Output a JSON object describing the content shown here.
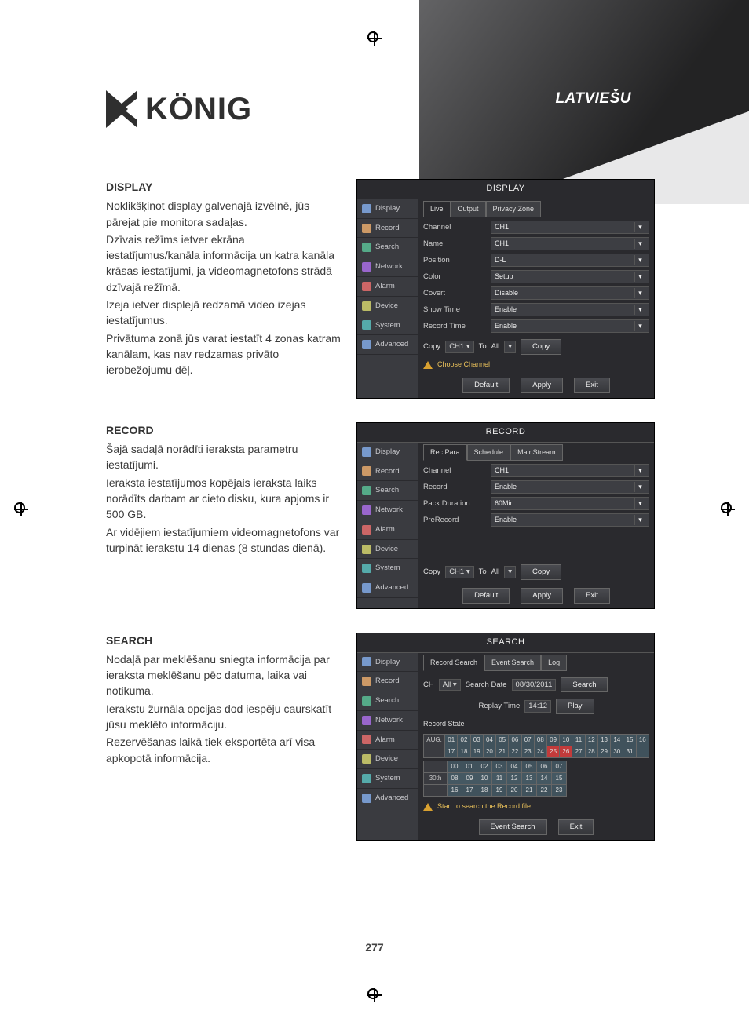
{
  "meta": {
    "page_number": "277",
    "background_color": "#ffffff"
  },
  "header": {
    "language": "LATVIEŠU",
    "logo_text": "KÖNIG"
  },
  "sections": {
    "display": {
      "heading": "DISPLAY",
      "p1": "Noklikšķinot display galvenajā izvēlnē, jūs pārejat pie monitora sadaļas.",
      "p2": "Dzīvais režīms ietver ekrāna iestatījumus/kanāla informācija un katra kanāla krāsas iestatījumi, ja videomagnetofons strādā dzīvajā režīmā.",
      "p3": "Izeja ietver displejā redzamā video izejas iestatījumus.",
      "p4": "Privātuma zonā jūs varat iestatīt 4 zonas katram kanālam, kas nav redzamas privāto ierobežojumu dēļ."
    },
    "record": {
      "heading": "RECORD",
      "p1": "Šajā sadaļā norādīti ieraksta parametru iestatījumi.",
      "p2": "Ieraksta iestatījumos kopējais ieraksta laiks norādīts darbam ar cieto disku, kura apjoms ir 500 GB.",
      "p3": "Ar vidējiem iestatījumiem videomagnetofons var turpināt ierakstu 14 dienas (8 stundas dienā)."
    },
    "search": {
      "heading": "SEARCH",
      "p1": "Nodaļā par meklēšanu sniegta informācija par ieraksta meklēšanu pēc datuma, laika vai notikuma.",
      "p2": "Ierakstu žurnāla opcijas dod iespēju caurskatīt jūsu meklēto informāciju.",
      "p3": "Rezervēšanas laikā tiek eksportēta arī visa apkopotā informācija."
    }
  },
  "dvr": {
    "colors": {
      "panel_bg": "#2a2a2e",
      "sidebar_bg": "#3a3b40",
      "field_bg": "#3d3e43",
      "border": "#555555",
      "text": "#dddddd"
    },
    "sidebar": [
      {
        "label": "Display"
      },
      {
        "label": "Record"
      },
      {
        "label": "Search"
      },
      {
        "label": "Network"
      },
      {
        "label": "Alarm"
      },
      {
        "label": "Device"
      },
      {
        "label": "System"
      },
      {
        "label": "Advanced"
      }
    ],
    "buttons": {
      "default": "Default",
      "apply": "Apply",
      "exit": "Exit",
      "copy": "Copy",
      "search": "Search",
      "play": "Play",
      "event_search": "Event Search"
    },
    "copy_label": "Copy",
    "to_label": "To",
    "all_label": "All",
    "ch1_opt": "CH1",
    "display_panel": {
      "title": "DISPLAY",
      "tabs": [
        "Live",
        "Output",
        "Privacy Zone"
      ],
      "rows": [
        {
          "label": "Channel",
          "value": "CH1"
        },
        {
          "label": "Name",
          "value": "CH1"
        },
        {
          "label": "Position",
          "value": "D-L"
        },
        {
          "label": "Color",
          "value": "Setup"
        },
        {
          "label": "Covert",
          "value": "Disable"
        },
        {
          "label": "Show Time",
          "value": "Enable"
        },
        {
          "label": "Record Time",
          "value": "Enable"
        }
      ],
      "warning": "Choose Channel"
    },
    "record_panel": {
      "title": "RECORD",
      "tabs": [
        "Rec Para",
        "Schedule",
        "MainStream"
      ],
      "rows": [
        {
          "label": "Channel",
          "value": "CH1"
        },
        {
          "label": "Record",
          "value": "Enable"
        },
        {
          "label": "Pack Duration",
          "value": "60Min"
        },
        {
          "label": "PreRecord",
          "value": "Enable"
        }
      ]
    },
    "search_panel": {
      "title": "SEARCH",
      "tabs": [
        "Record Search",
        "Event Search",
        "Log"
      ],
      "ch_label": "CH",
      "ch_value": "All",
      "date_label": "Search Date",
      "date_value": "08/30/2011",
      "replay_label": "Replay Time",
      "replay_value": "14:12",
      "state_label": "Record State",
      "month": "AUG.",
      "day_label": "30th",
      "warning": "Start to search the Record file",
      "cal_r1": [
        "01",
        "02",
        "03",
        "04",
        "05",
        "06",
        "07",
        "08",
        "09",
        "10",
        "11",
        "12",
        "13",
        "14",
        "15",
        "16"
      ],
      "cal_r2": [
        "17",
        "18",
        "19",
        "20",
        "21",
        "22",
        "23",
        "24",
        "25",
        "26",
        "27",
        "28",
        "29",
        "30",
        "31",
        ""
      ],
      "hours_r1": [
        "00",
        "01",
        "02",
        "03",
        "04",
        "05",
        "06",
        "07"
      ],
      "hours_r2": [
        "08",
        "09",
        "10",
        "11",
        "12",
        "13",
        "14",
        "15"
      ],
      "hours_r3": [
        "16",
        "17",
        "18",
        "19",
        "20",
        "21",
        "22",
        "23"
      ]
    }
  }
}
